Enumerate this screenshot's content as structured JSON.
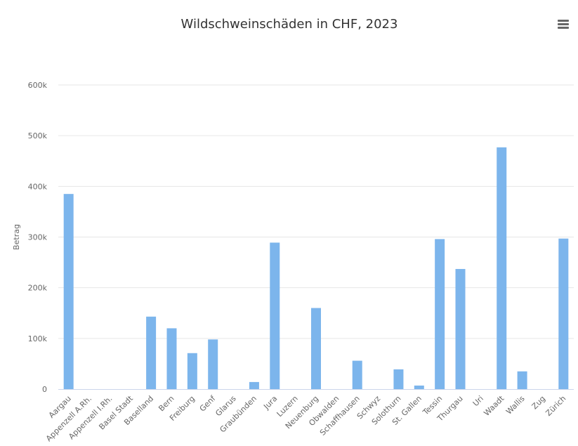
{
  "chart_data": {
    "type": "bar",
    "title": "Wildschweinschäden in CHF, 2023",
    "ylabel": "Betrag",
    "xlabel": "",
    "ylim": [
      0,
      600000
    ],
    "yticks": [
      0,
      100000,
      200000,
      300000,
      400000,
      500000,
      600000
    ],
    "ytick_labels": [
      "0",
      "100k",
      "200k",
      "300k",
      "400k",
      "500k",
      "600k"
    ],
    "grid": true,
    "bar_color": "#7cb5ec",
    "categories": [
      "Aargau",
      "Appenzell A.Rh.",
      "Appenzell I.Rh.",
      "Basel Stadt",
      "Baselland",
      "Bern",
      "Freiburg",
      "Genf",
      "Glarus",
      "Graubünden",
      "Jura",
      "Luzern",
      "Neuenburg",
      "Obwalden",
      "Schaffhausen",
      "Schwyz",
      "Solothurn",
      "St. Gallen",
      "Tessin",
      "Thurgau",
      "Uri",
      "Waadt",
      "Wallis",
      "Zug",
      "Zürich"
    ],
    "values": [
      385000,
      0,
      0,
      0,
      143000,
      120000,
      71000,
      98000,
      0,
      14000,
      289000,
      0,
      160000,
      0,
      56000,
      0,
      39000,
      7000,
      296000,
      237000,
      0,
      477000,
      35000,
      0,
      297000
    ]
  },
  "menu": {
    "icon": "hamburger-menu-icon"
  }
}
